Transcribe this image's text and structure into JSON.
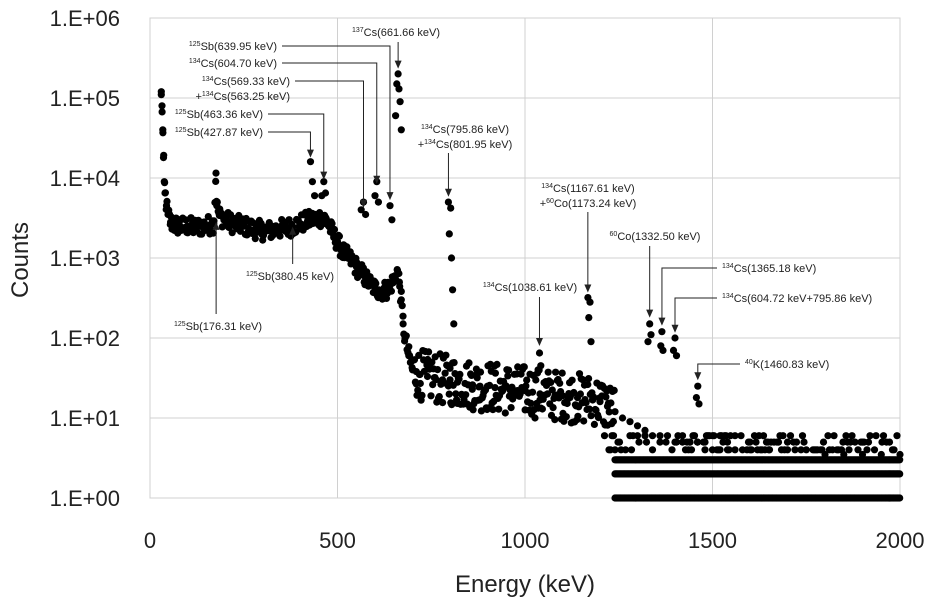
{
  "chart_data": {
    "type": "scatter",
    "title": "",
    "xlabel": "Energy (keV)",
    "ylabel": "Counts",
    "xlim": [
      0,
      2000
    ],
    "ylim": [
      1,
      1000000
    ],
    "yscale": "log",
    "grid": true,
    "x_ticks": [
      0,
      500,
      1000,
      1500,
      2000
    ],
    "x_tick_labels": [
      "0",
      "500",
      "1000",
      "1500",
      "2000"
    ],
    "y_ticks": [
      1,
      10,
      100,
      1000,
      10000,
      100000,
      1000000
    ],
    "y_tick_labels": [
      "1.E+00",
      "1.E+01",
      "1.E+02",
      "1.E+03",
      "1.E+04",
      "1.E+05",
      "1.E+06"
    ],
    "marker_color": "#000000",
    "background_points": [
      [
        30,
        110000
      ],
      [
        32,
        80000
      ],
      [
        34,
        40000
      ],
      [
        36,
        18000
      ],
      [
        38,
        9000
      ],
      [
        40,
        6500
      ],
      [
        44,
        4500
      ],
      [
        48,
        3500
      ],
      [
        55,
        2800
      ],
      [
        65,
        2600
      ],
      [
        80,
        2500
      ],
      [
        100,
        2500
      ],
      [
        120,
        2400
      ],
      [
        140,
        2500
      ],
      [
        160,
        2600
      ],
      [
        170,
        2700
      ],
      [
        176,
        11500
      ],
      [
        178,
        4500
      ],
      [
        185,
        3400
      ],
      [
        200,
        3000
      ],
      [
        220,
        2700
      ],
      [
        250,
        2500
      ],
      [
        280,
        2300
      ],
      [
        300,
        2200
      ],
      [
        320,
        2200
      ],
      [
        340,
        2300
      ],
      [
        360,
        2350
      ],
      [
        380,
        2500
      ],
      [
        400,
        2700
      ],
      [
        420,
        2900
      ],
      [
        440,
        3100
      ],
      [
        455,
        3200
      ],
      [
        470,
        3000
      ],
      [
        480,
        2400
      ],
      [
        490,
        1900
      ],
      [
        500,
        1600
      ],
      [
        510,
        1300
      ],
      [
        520,
        1100
      ],
      [
        530,
        1000
      ],
      [
        540,
        900
      ],
      [
        550,
        780
      ],
      [
        560,
        680
      ],
      [
        570,
        600
      ],
      [
        580,
        520
      ],
      [
        590,
        460
      ],
      [
        600,
        420
      ],
      [
        610,
        400
      ],
      [
        620,
        390
      ],
      [
        630,
        400
      ],
      [
        640,
        450
      ],
      [
        650,
        520
      ],
      [
        655,
        600
      ],
      [
        660,
        700
      ],
      [
        665,
        500
      ],
      [
        670,
        300
      ],
      [
        675,
        150
      ],
      [
        680,
        100
      ],
      [
        690,
        60
      ],
      [
        700,
        40
      ],
      [
        710,
        38
      ],
      [
        720,
        35
      ],
      [
        740,
        33
      ],
      [
        760,
        32
      ],
      [
        780,
        30
      ],
      [
        800,
        30
      ],
      [
        820,
        28
      ],
      [
        840,
        27
      ],
      [
        860,
        26
      ],
      [
        880,
        25
      ],
      [
        900,
        25
      ],
      [
        920,
        24
      ],
      [
        940,
        23
      ],
      [
        960,
        23
      ],
      [
        980,
        22
      ],
      [
        1000,
        22
      ],
      [
        1020,
        21
      ],
      [
        1040,
        20
      ],
      [
        1060,
        20
      ],
      [
        1080,
        19
      ],
      [
        1100,
        19
      ],
      [
        1120,
        18
      ],
      [
        1140,
        18
      ],
      [
        1160,
        17
      ],
      [
        1180,
        17
      ],
      [
        1200,
        16
      ],
      [
        1220,
        14
      ],
      [
        1240,
        12
      ],
      [
        1260,
        10
      ],
      [
        1280,
        9
      ],
      [
        1300,
        8
      ],
      [
        1320,
        7
      ],
      [
        1340,
        6
      ],
      [
        1360,
        6
      ],
      [
        1380,
        6
      ],
      [
        1400,
        5
      ],
      [
        1420,
        5
      ],
      [
        1440,
        5
      ],
      [
        1460,
        5
      ],
      [
        1480,
        4
      ],
      [
        1500,
        4
      ],
      [
        1520,
        4
      ],
      [
        1540,
        4
      ],
      [
        1560,
        4
      ],
      [
        1580,
        4
      ],
      [
        1600,
        4
      ],
      [
        1650,
        4
      ],
      [
        1700,
        4
      ],
      [
        1750,
        4
      ],
      [
        1800,
        3.5
      ],
      [
        1850,
        3.5
      ],
      [
        1900,
        3.5
      ],
      [
        1950,
        3.5
      ],
      [
        2000,
        3.5
      ]
    ],
    "peak_points": [
      [
        427.87,
        16000
      ],
      [
        433,
        9000
      ],
      [
        439,
        6000
      ],
      [
        463.36,
        9000
      ],
      [
        458,
        6000
      ],
      [
        468,
        6500
      ],
      [
        563.25,
        4000
      ],
      [
        569.33,
        5000
      ],
      [
        575,
        3500
      ],
      [
        604.7,
        9000
      ],
      [
        600,
        6000
      ],
      [
        609,
        5000
      ],
      [
        639.95,
        4500
      ],
      [
        645,
        3000
      ],
      [
        661.66,
        200000
      ],
      [
        658,
        150000
      ],
      [
        664,
        130000
      ],
      [
        667,
        90000
      ],
      [
        655,
        60000
      ],
      [
        670,
        40000
      ],
      [
        795.86,
        5000
      ],
      [
        801.95,
        4200
      ],
      [
        798,
        2000
      ],
      [
        804,
        1000
      ],
      [
        807,
        400
      ],
      [
        810,
        150
      ],
      [
        1038.61,
        65
      ],
      [
        1035,
        40
      ],
      [
        1042,
        45
      ],
      [
        1167.61,
        320
      ],
      [
        1173.24,
        280
      ],
      [
        1170,
        180
      ],
      [
        1176,
        90
      ],
      [
        1332.5,
        150
      ],
      [
        1328,
        90
      ],
      [
        1336,
        110
      ],
      [
        1365.18,
        120
      ],
      [
        1362,
        80
      ],
      [
        1368,
        70
      ],
      [
        1400,
        100
      ],
      [
        1396,
        70
      ],
      [
        1404,
        60
      ],
      [
        1460.83,
        25
      ],
      [
        1457,
        18
      ],
      [
        1464,
        15
      ]
    ],
    "counting_floor_bands": [
      {
        "y": 1,
        "x_start": 1240,
        "x_end": 2000
      },
      {
        "y": 2,
        "x_start": 1240,
        "x_end": 2000
      },
      {
        "y": 3,
        "x_start": 1240,
        "x_end": 2000
      }
    ],
    "annotations": [
      {
        "sup": "125",
        "text": "Sb(176.31 keV)",
        "x": 176.31,
        "y": 3000,
        "label_pos": "below"
      },
      {
        "sup": "125",
        "text": "Sb(380.45 keV)",
        "x": 380.45,
        "y": 2600,
        "label_pos": "below"
      },
      {
        "sup": "125",
        "text": "Sb(427.87 keV)",
        "x": 427.87,
        "y": 17000,
        "label_pos": "left"
      },
      {
        "sup": "125",
        "text": "Sb(463.36 keV)",
        "x": 463.36,
        "y": 9000,
        "label_pos": "left"
      },
      {
        "sup": "134",
        "text": "Cs(569.33 keV)",
        "prefix2": "+",
        "sup2": "134",
        "text2": "Cs(563.25 keV)",
        "x": 569.33,
        "y": 4000,
        "label_pos": "left"
      },
      {
        "sup": "134",
        "text": "Cs(604.70 keV)",
        "x": 604.7,
        "y": 8000,
        "label_pos": "left"
      },
      {
        "sup": "125",
        "text": "Sb(639.95 keV)",
        "x": 639.95,
        "y": 5000,
        "label_pos": "left"
      },
      {
        "sup": "137",
        "text": "Cs(661.66 keV)",
        "x": 661.66,
        "y": 220000,
        "label_pos": "above"
      },
      {
        "sup": "134",
        "text": "Cs(795.86 keV)",
        "prefix2": "+",
        "sup2": "134",
        "text2": "Cs(801.95 keV)",
        "x": 795.86,
        "y": 5500,
        "label_pos": "above"
      },
      {
        "sup": "134",
        "text": "Cs(1038.61 keV)",
        "x": 1038.61,
        "y": 75,
        "label_pos": "above"
      },
      {
        "sup": "134",
        "text": "Cs(1167.61 keV)",
        "prefix2": "+",
        "sup2": "60",
        "text2": "Co(1173.24 keV)",
        "x": 1167.61,
        "y": 350,
        "label_pos": "above"
      },
      {
        "sup": "60",
        "text": "Co(1332.50 keV)",
        "x": 1332.5,
        "y": 170,
        "label_pos": "above"
      },
      {
        "sup": "134",
        "text": "Cs(1365.18 keV)",
        "x": 1365.18,
        "y": 135,
        "label_pos": "right"
      },
      {
        "sup": "134",
        "text": "Cs(604.72 keV+795.86 keV)",
        "x": 1400,
        "y": 110,
        "label_pos": "right"
      },
      {
        "sup": "40",
        "text": "K(1460.83 keV)",
        "x": 1460.83,
        "y": 28,
        "label_pos": "right"
      }
    ]
  }
}
